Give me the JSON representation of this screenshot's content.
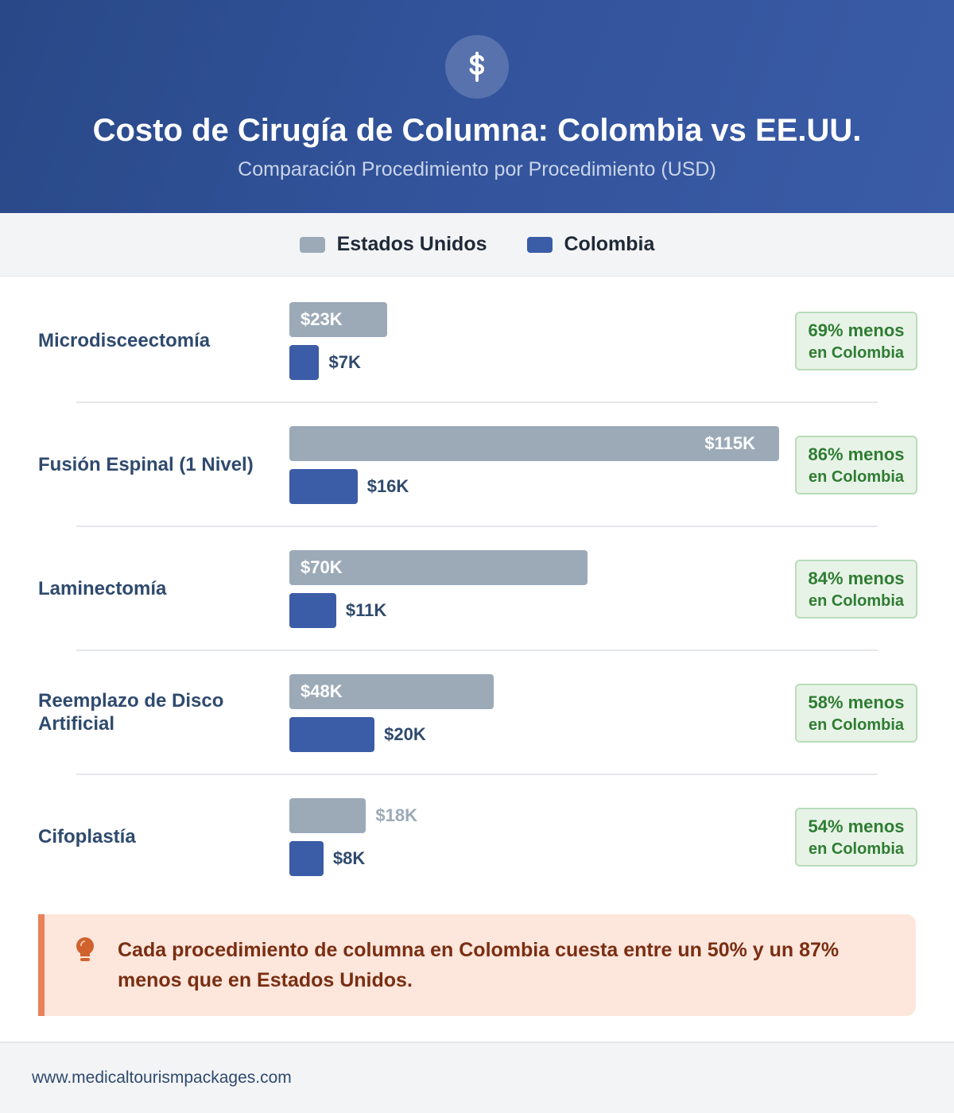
{
  "header": {
    "icon": "dollar-icon",
    "title": "Costo de Cirugía de Columna: Colombia vs EE.UU.",
    "subtitle": "Comparación Procedimiento por Procedimiento (USD)"
  },
  "legend": [
    {
      "label": "Estados Unidos",
      "color": "#9caab8"
    },
    {
      "label": "Colombia",
      "color": "#3b5ca7"
    }
  ],
  "chart_data": {
    "type": "bar",
    "orientation": "horizontal",
    "unit": "USD (thousands)",
    "categories": [
      "Microdisceectomía",
      "Fusión Espinal (1 Nivel)",
      "Laminectomía",
      "Reemplazo de Disco Artificial",
      "Cifoplastía"
    ],
    "series": [
      {
        "name": "Estados Unidos",
        "values": [
          23,
          115,
          70,
          48,
          18
        ],
        "labels": [
          "$23K",
          "$115K",
          "$70K",
          "$48K",
          "$18K"
        ],
        "color": "#9caab8"
      },
      {
        "name": "Colombia",
        "values": [
          7,
          16,
          11,
          20,
          8
        ],
        "labels": [
          "$7K",
          "$16K",
          "$11K",
          "$20K",
          "$8K"
        ],
        "color": "#3b5ca7"
      }
    ],
    "savings": [
      {
        "pct": "69% menos",
        "sub": "en Colombia"
      },
      {
        "pct": "86% menos",
        "sub": "en Colombia"
      },
      {
        "pct": "84% menos",
        "sub": "en Colombia"
      },
      {
        "pct": "58% menos",
        "sub": "en Colombia"
      },
      {
        "pct": "54% menos",
        "sub": "en Colombia"
      }
    ]
  },
  "note": {
    "icon": "lightbulb-icon",
    "text": "Cada procedimiento de columna en Colombia cuesta entre un 50% y un 87% menos que en Estados Unidos."
  },
  "footer": {
    "url": "www.medicaltourismpackages.com"
  }
}
